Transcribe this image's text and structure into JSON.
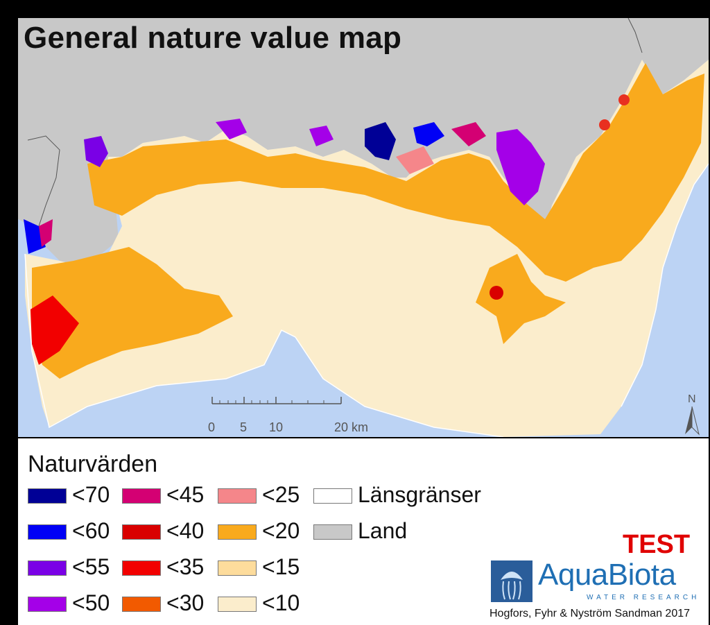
{
  "map": {
    "title": "General nature value map",
    "north_label": "N",
    "scale": {
      "ticks": [
        "0",
        "5",
        "10",
        "20 km"
      ]
    },
    "colors": {
      "sea": "#bcd3f4",
      "land": "#c8c8c8",
      "low": "#fbedcc",
      "mid": "#f9aa1d"
    }
  },
  "legend": {
    "title": "Naturvärden",
    "items": [
      {
        "label": "<70",
        "color": "#000096"
      },
      {
        "label": "<60",
        "color": "#0000f5"
      },
      {
        "label": "<55",
        "color": "#7a00e6"
      },
      {
        "label": "<50",
        "color": "#a400e8"
      },
      {
        "label": "<45",
        "color": "#d40073"
      },
      {
        "label": "<40",
        "color": "#d90000"
      },
      {
        "label": "<35",
        "color": "#f20000"
      },
      {
        "label": "<30",
        "color": "#f25a00"
      },
      {
        "label": "<25",
        "color": "#f5868a"
      },
      {
        "label": "<20",
        "color": "#f9aa1d"
      },
      {
        "label": "<15",
        "color": "#fddc9c"
      },
      {
        "label": "<10",
        "color": "#fbedcc"
      },
      {
        "label": "Länsgränser",
        "color": "#ffffff"
      },
      {
        "label": "Land",
        "color": "#c8c8c8"
      }
    ]
  },
  "branding": {
    "test_label": "TEST",
    "logo_text": "AquaBiota",
    "logo_sub": "WATER RESEARCH",
    "credit": "Hogfors, Fyhr & Nyström Sandman 2017"
  }
}
